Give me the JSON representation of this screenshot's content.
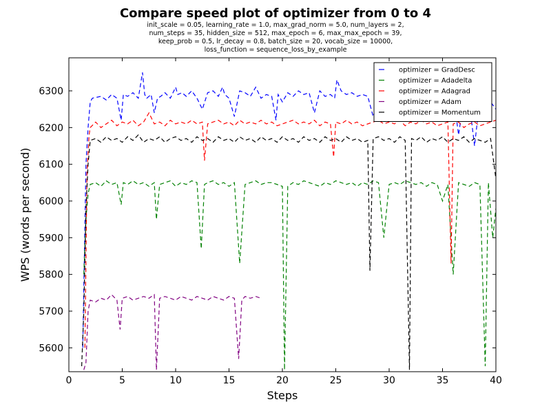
{
  "chart_data": {
    "type": "line",
    "title": "Compare speed plot of optimizer from 0 to 4",
    "subtitle_lines": [
      "init_scale = 0.05, learning_rate = 1.0, max_grad_norm = 5.0, num_layers = 2,",
      "num_steps = 35, hidden_size = 512, max_epoch = 6, max_max_epoch = 39,",
      "keep_prob = 0.5, lr_decay = 0.8, batch_size = 20, vocab_size = 10000,",
      "loss_function = sequence_loss_by_example"
    ],
    "xlabel": "Steps",
    "ylabel": "WPS (words per second)",
    "xlim": [
      0,
      40
    ],
    "ylim": [
      5535,
      6390
    ],
    "xticks": [
      0,
      5,
      10,
      15,
      20,
      25,
      30,
      35,
      40
    ],
    "yticks": [
      5600,
      5700,
      5800,
      5900,
      6000,
      6100,
      6200,
      6300
    ],
    "grid": false,
    "legend_position": "top-right",
    "line_style": "dashed",
    "series": [
      {
        "name": "optimizer = GradDesc",
        "color": "#0000ff",
        "x": [
          1.3,
          1.6,
          1.8,
          2.0,
          2.2,
          3.0,
          3.5,
          4.0,
          4.5,
          4.9,
          5.1,
          5.5,
          6.0,
          6.5,
          6.9,
          7.1,
          7.3,
          7.7,
          8.0,
          8.3,
          8.6,
          9.0,
          9.5,
          10.0,
          10.2,
          10.6,
          11.0,
          11.5,
          12.0,
          12.5,
          13.0,
          13.5,
          14.0,
          14.4,
          14.6,
          15.0,
          15.5,
          16.0,
          16.5,
          17.0,
          17.5,
          18.0,
          18.5,
          19.0,
          19.4,
          19.6,
          20.0,
          20.5,
          21.0,
          21.5,
          22.0,
          22.5,
          23.0,
          23.5,
          24.0,
          24.5,
          24.9,
          25.1,
          25.5,
          26.0,
          26.5,
          27.0,
          27.5,
          28.0,
          28.5,
          29.0,
          29.5,
          30.0,
          30.5,
          31.0,
          31.5,
          32.0,
          32.5,
          33.0,
          33.5,
          34.0,
          34.5,
          35.0,
          35.5,
          36.0,
          36.5,
          37.0,
          37.5,
          38.0,
          38.5,
          39.0,
          39.5,
          40.0
        ],
        "y": [
          5600,
          6100,
          6200,
          6270,
          6280,
          6285,
          6275,
          6290,
          6280,
          6220,
          6290,
          6285,
          6295,
          6280,
          6350,
          6290,
          6280,
          6290,
          6240,
          6280,
          6285,
          6295,
          6280,
          6310,
          6290,
          6295,
          6285,
          6300,
          6280,
          6250,
          6295,
          6300,
          6285,
          6310,
          6290,
          6280,
          6230,
          6300,
          6295,
          6285,
          6310,
          6280,
          6290,
          6285,
          6220,
          6290,
          6270,
          6295,
          6285,
          6300,
          6290,
          6295,
          6240,
          6300,
          6285,
          6290,
          6280,
          6330,
          6300,
          6290,
          6295,
          6285,
          6290,
          6285,
          6230,
          6280,
          6290,
          6285,
          6220,
          6275,
          6285,
          6240,
          6280,
          6275,
          6290,
          6280,
          6230,
          6275,
          6270,
          6290,
          6180,
          6280,
          6270,
          6150,
          6280,
          6260,
          6270,
          6250
        ]
      },
      {
        "name": "optimizer = Adadelta",
        "color": "#008000",
        "x": [
          1.4,
          1.6,
          1.8,
          2.0,
          2.5,
          3.0,
          3.5,
          4.0,
          4.5,
          4.9,
          5.1,
          5.5,
          6.0,
          6.5,
          7.0,
          7.5,
          8.0,
          8.2,
          8.5,
          9.0,
          9.5,
          10.0,
          10.5,
          11.0,
          11.5,
          12.0,
          12.4,
          12.7,
          13.0,
          13.5,
          14.0,
          14.5,
          15.0,
          15.5,
          16.0,
          16.5,
          17.0,
          17.5,
          18.0,
          18.5,
          19.0,
          19.5,
          20.0,
          20.2,
          20.5,
          21.0,
          21.5,
          22.0,
          22.5,
          23.0,
          23.5,
          24.0,
          24.5,
          25.0,
          25.5,
          26.0,
          26.5,
          27.0,
          27.5,
          28.0,
          28.5,
          29.0,
          29.5,
          30.0,
          30.5,
          31.0,
          31.5,
          32.0,
          32.5,
          33.0,
          33.5,
          34.0,
          34.5,
          35.0,
          35.5,
          36.0,
          36.5,
          37.0,
          37.5,
          38.0,
          38.5,
          39.0,
          39.3,
          39.7,
          40.0
        ],
        "y": [
          5800,
          5950,
          6020,
          6045,
          6050,
          6040,
          6055,
          6045,
          6050,
          5990,
          6050,
          6045,
          6055,
          6045,
          6050,
          6040,
          6050,
          5950,
          6045,
          6050,
          6055,
          6040,
          6050,
          6045,
          6055,
          6050,
          5870,
          6045,
          6050,
          6055,
          6045,
          6050,
          6040,
          6050,
          5830,
          6045,
          6050,
          6055,
          6045,
          6050,
          6050,
          6045,
          6040,
          5540,
          6040,
          6050,
          6045,
          6055,
          6050,
          6045,
          6040,
          6050,
          6045,
          6055,
          6050,
          6045,
          6050,
          6040,
          6050,
          6045,
          6055,
          6050,
          5900,
          6045,
          6050,
          6045,
          6055,
          6050,
          6045,
          6050,
          6040,
          6050,
          6045,
          6000,
          6045,
          5800,
          6050,
          6045,
          6040,
          6050,
          6045,
          5550,
          6050,
          5900,
          5980
        ]
      },
      {
        "name": "optimizer = Adagrad",
        "color": "#ff0000",
        "x": [
          1.5,
          1.7,
          1.9,
          2.0,
          2.5,
          3.0,
          3.5,
          4.0,
          4.5,
          5.0,
          5.5,
          6.0,
          6.5,
          7.0,
          7.5,
          8.0,
          8.5,
          9.0,
          9.5,
          10.0,
          10.5,
          11.0,
          11.5,
          12.0,
          12.5,
          12.7,
          13.0,
          13.5,
          14.0,
          14.5,
          15.0,
          15.5,
          16.0,
          16.5,
          17.0,
          17.5,
          18.0,
          18.5,
          19.0,
          19.5,
          20.0,
          20.5,
          21.0,
          21.5,
          22.0,
          22.5,
          23.0,
          23.5,
          24.0,
          24.5,
          24.8,
          25.0,
          25.5,
          26.0,
          26.5,
          27.0,
          27.5,
          28.0,
          28.5,
          29.0,
          29.5,
          30.0,
          30.5,
          31.0,
          31.5,
          32.0,
          32.5,
          33.0,
          33.5,
          34.0,
          34.5,
          35.0,
          35.5,
          35.8,
          36.0,
          36.5,
          37.0,
          37.5,
          38.0,
          38.5,
          39.0,
          39.5,
          40.0
        ],
        "y": [
          5600,
          6080,
          6180,
          6200,
          6215,
          6200,
          6210,
          6220,
          6205,
          6215,
          6210,
          6220,
          6205,
          6215,
          6240,
          6210,
          6215,
          6205,
          6220,
          6210,
          6215,
          6210,
          6220,
          6210,
          6215,
          6110,
          6210,
          6215,
          6220,
          6210,
          6215,
          6205,
          6220,
          6210,
          6215,
          6210,
          6220,
          6210,
          6215,
          6205,
          6210,
          6215,
          6220,
          6210,
          6215,
          6210,
          6220,
          6205,
          6215,
          6210,
          6120,
          6215,
          6210,
          6220,
          6210,
          6215,
          6205,
          6210,
          6215,
          6220,
          6210,
          6215,
          6210,
          6220,
          6205,
          6215,
          6210,
          6220,
          6210,
          6215,
          6205,
          6210,
          6215,
          5830,
          6210,
          6215,
          6200,
          6210,
          6215,
          6205,
          6210,
          6215,
          6220
        ]
      },
      {
        "name": "optimizer = Adam",
        "color": "#800080",
        "x": [
          1.4,
          1.6,
          1.8,
          2.0,
          2.5,
          3.0,
          3.5,
          4.0,
          4.5,
          4.8,
          5.0,
          5.5,
          6.0,
          6.5,
          7.0,
          7.5,
          8.0,
          8.2,
          8.5,
          9.0,
          9.5,
          10.0,
          10.5,
          11.0,
          11.5,
          12.0,
          12.5,
          13.0,
          13.5,
          14.0,
          14.5,
          15.0,
          15.5,
          15.9,
          16.2,
          16.5,
          17.0,
          17.5,
          18.0
        ],
        "y": [
          5540,
          5560,
          5700,
          5730,
          5725,
          5735,
          5730,
          5745,
          5730,
          5650,
          5735,
          5740,
          5730,
          5735,
          5740,
          5735,
          5745,
          5540,
          5735,
          5740,
          5735,
          5730,
          5740,
          5735,
          5730,
          5740,
          5735,
          5730,
          5740,
          5735,
          5730,
          5740,
          5735,
          5570,
          5730,
          5740,
          5735,
          5740,
          5735
        ]
      },
      {
        "name": "optimizer = Momentum",
        "color": "#000000",
        "x": [
          1.2,
          1.4,
          1.6,
          1.8,
          2.0,
          2.5,
          3.0,
          3.5,
          4.0,
          4.5,
          5.0,
          5.5,
          6.0,
          6.5,
          7.0,
          7.5,
          8.0,
          8.5,
          9.0,
          9.5,
          10.0,
          10.5,
          11.0,
          11.5,
          12.0,
          12.5,
          13.0,
          13.5,
          14.0,
          14.5,
          15.0,
          15.5,
          16.0,
          16.5,
          17.0,
          17.5,
          18.0,
          18.5,
          19.0,
          19.5,
          20.0,
          20.5,
          21.0,
          21.5,
          22.0,
          22.5,
          23.0,
          23.5,
          24.0,
          24.5,
          25.0,
          25.5,
          26.0,
          26.5,
          27.0,
          27.5,
          28.0,
          28.2,
          28.5,
          29.0,
          29.5,
          30.0,
          30.5,
          31.0,
          31.5,
          31.9,
          32.1,
          32.5,
          33.0,
          33.5,
          34.0,
          34.5,
          35.0,
          35.5,
          36.0,
          36.5,
          37.0,
          37.5,
          38.0,
          38.5,
          39.0,
          39.5,
          40.0
        ],
        "y": [
          5550,
          5700,
          5980,
          6100,
          6165,
          6170,
          6160,
          6175,
          6165,
          6170,
          6160,
          6175,
          6165,
          6180,
          6160,
          6170,
          6165,
          6175,
          6160,
          6170,
          6175,
          6165,
          6170,
          6160,
          6175,
          6165,
          6170,
          6160,
          6175,
          6165,
          6170,
          6160,
          6175,
          6165,
          6170,
          6160,
          6175,
          6165,
          6170,
          6160,
          6175,
          6165,
          6170,
          6160,
          6175,
          6165,
          6170,
          6160,
          6175,
          6165,
          6170,
          6160,
          6175,
          6165,
          6170,
          6160,
          6165,
          5810,
          6170,
          6175,
          6165,
          6170,
          6160,
          6175,
          6165,
          5540,
          6170,
          6165,
          6175,
          6160,
          6170,
          6165,
          6175,
          6160,
          6170,
          6165,
          6175,
          6160,
          6170,
          6165,
          6160,
          6170,
          6060
        ]
      }
    ]
  }
}
